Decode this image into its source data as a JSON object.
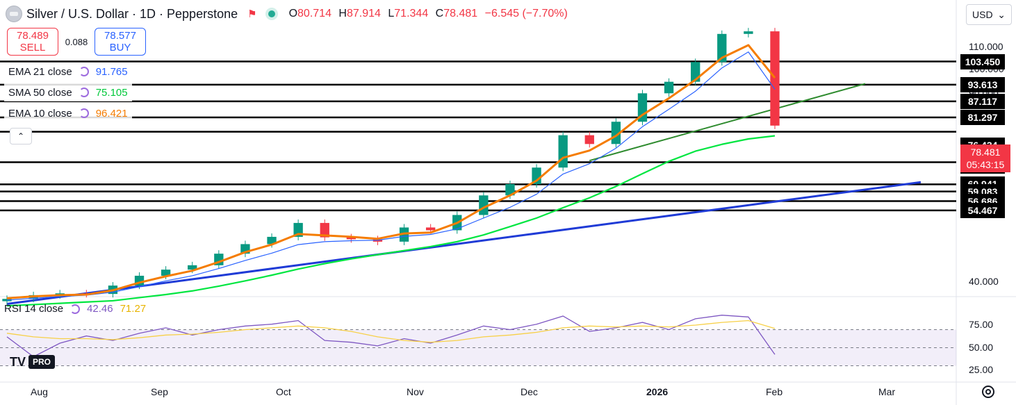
{
  "header": {
    "symbol": "Silver / U.S. Dollar · 1D · Pepperstone",
    "open_label": "O",
    "open": "80.714",
    "high_label": "H",
    "high": "87.914",
    "low_label": "L",
    "low": "71.344",
    "close_label": "C",
    "close": "78.481",
    "change": "−6.545 (−7.70%)"
  },
  "trade": {
    "sell_price": "78.489",
    "sell_label": "SELL",
    "spread": "0.088",
    "buy_price": "78.577",
    "buy_label": "BUY"
  },
  "indicators": [
    {
      "name": "EMA 21 close",
      "value": "91.765",
      "color": "#2962ff"
    },
    {
      "name": "SMA 50 close",
      "value": "75.105",
      "color": "#00e640"
    },
    {
      "name": "EMA 10 close",
      "value": "96.421",
      "color": "#f57c00"
    }
  ],
  "collapse_glyph": "⌃",
  "currency": "USD",
  "currency_glyph": "⌄",
  "price_axis": [
    "110.000",
    "100.000",
    "90.000",
    "40.000"
  ],
  "levels": [
    "103.450",
    "93.613",
    "87.117",
    "81.297",
    "76.434",
    "67.030",
    "60.941",
    "59.083",
    "56.686",
    "54.467"
  ],
  "current_price": {
    "value": "78.481",
    "countdown": "05:43:15",
    "color": "#f23645"
  },
  "time_axis": [
    "Aug",
    "Sep",
    "Oct",
    "Nov",
    "Dec",
    "2026",
    "Feb",
    "Mar"
  ],
  "rsi": {
    "title": "RSI 14 close",
    "value": "42.46",
    "ma_value": "71.27",
    "axis": [
      "75.00",
      "50.00",
      "25.00"
    ],
    "line_color": "#7e57c2",
    "ma_color": "#f7d046"
  },
  "logo": {
    "mark": "TV",
    "badge": "PRO"
  },
  "chart_data": {
    "type": "candlestick",
    "title": "Silver / U.S. Dollar · 1D · Pepperstone",
    "x": [
      "2025-07-28",
      "2025-08-04",
      "2025-08-11",
      "2025-08-18",
      "2025-08-25",
      "2025-09-01",
      "2025-09-08",
      "2025-09-15",
      "2025-09-22",
      "2025-09-29",
      "2025-10-06",
      "2025-10-13",
      "2025-10-20",
      "2025-10-27",
      "2025-11-03",
      "2025-11-10",
      "2025-11-17",
      "2025-11-24",
      "2025-12-01",
      "2025-12-08",
      "2025-12-15",
      "2025-12-22",
      "2025-12-29",
      "2026-01-05",
      "2026-01-12",
      "2026-01-19",
      "2026-01-23",
      "2026-01-26",
      "2026-01-28",
      "2026-01-30"
    ],
    "close": [
      37.2,
      37.8,
      38.1,
      38.0,
      39.4,
      41.1,
      42.2,
      43.0,
      45.2,
      47.1,
      48.6,
      51.6,
      48.5,
      48.1,
      47.6,
      50.6,
      50.0,
      53.4,
      58.1,
      61.0,
      65.5,
      75.3,
      72.5,
      79.8,
      90.2,
      94.8,
      103.2,
      116.5,
      117.8,
      78.481
    ],
    "series": [
      {
        "name": "EMA 21 close",
        "values": [
          37.0,
          37.3,
          37.6,
          37.8,
          38.3,
          39.2,
          40.2,
          41.1,
          42.4,
          43.9,
          45.3,
          47.0,
          47.6,
          47.8,
          47.9,
          48.7,
          49.1,
          50.3,
          52.7,
          55.2,
          58.4,
          63.7,
          66.6,
          71.2,
          78.1,
          84.2,
          91.0,
          100.6,
          107.8,
          91.765
        ]
      },
      {
        "name": "SMA 50 close",
        "values": [
          36.1,
          36.3,
          36.5,
          36.7,
          36.9,
          37.4,
          37.9,
          38.5,
          39.3,
          40.2,
          41.2,
          42.3,
          43.3,
          44.2,
          45.0,
          45.8,
          46.6,
          47.6,
          49.0,
          50.8,
          52.7,
          55.1,
          57.5,
          60.4,
          63.8,
          67.3,
          70.3,
          72.4,
          74.1,
          75.105
        ]
      },
      {
        "name": "EMA 10 close",
        "values": [
          37.3,
          37.6,
          37.8,
          37.9,
          38.6,
          39.9,
          41.0,
          42.0,
          43.6,
          45.5,
          47.0,
          49.2,
          48.9,
          48.6,
          48.2,
          49.3,
          49.5,
          51.6,
          55.1,
          58.1,
          61.9,
          68.3,
          70.5,
          75.1,
          82.2,
          88.3,
          95.6,
          105.1,
          111.0,
          96.421
        ]
      }
    ],
    "price_levels": [
      103.45,
      93.613,
      87.117,
      81.297,
      76.434,
      67.03,
      60.941,
      59.083,
      56.686,
      54.467
    ],
    "rsi_series": [
      {
        "name": "RSI 14 close",
        "values": [
          62,
          40,
          55,
          63,
          58,
          66,
          72,
          64,
          70,
          74,
          76,
          80,
          58,
          56,
          52,
          60,
          55,
          64,
          74,
          70,
          76,
          85,
          68,
          72,
          78,
          70,
          82,
          86,
          84,
          42.46
        ]
      },
      {
        "name": "RSI MA",
        "values": [
          66,
          62,
          60,
          60,
          59,
          61,
          64,
          65,
          67,
          70,
          72,
          74,
          72,
          68,
          62,
          58,
          56,
          58,
          62,
          64,
          67,
          72,
          74,
          73,
          74,
          73,
          75,
          78,
          80,
          71.27
        ]
      }
    ],
    "xlabel": "",
    "ylabel": ""
  }
}
